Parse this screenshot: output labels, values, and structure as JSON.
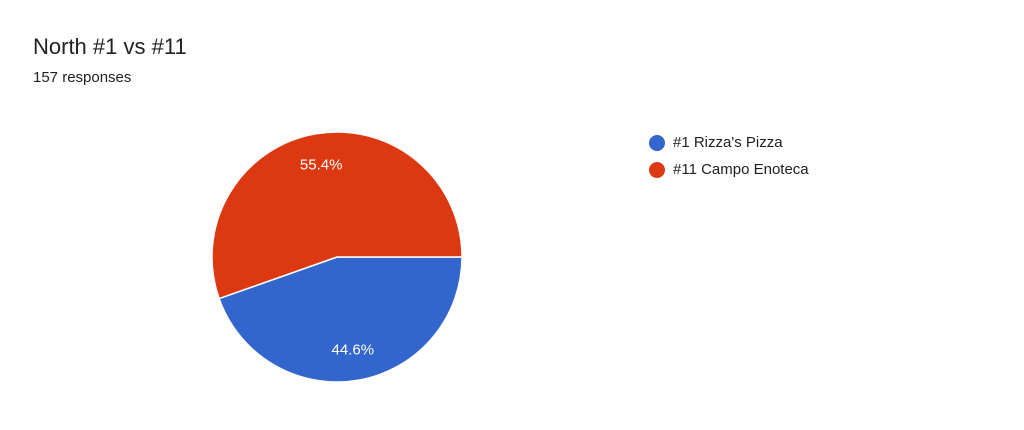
{
  "header": {
    "title": "North #1 vs #11",
    "responses": "157 responses"
  },
  "chart_data": {
    "type": "pie",
    "start_angle": "3 o'clock, clockwise",
    "slices": [
      {
        "label": "#1 Rizza's Pizza",
        "value": 44.6,
        "display": "44.6%",
        "color": "#3366cc"
      },
      {
        "label": "#11 Campo Enoteca",
        "value": 55.4,
        "display": "55.4%",
        "color": "#dc3912"
      }
    ],
    "legend_position": "right"
  }
}
